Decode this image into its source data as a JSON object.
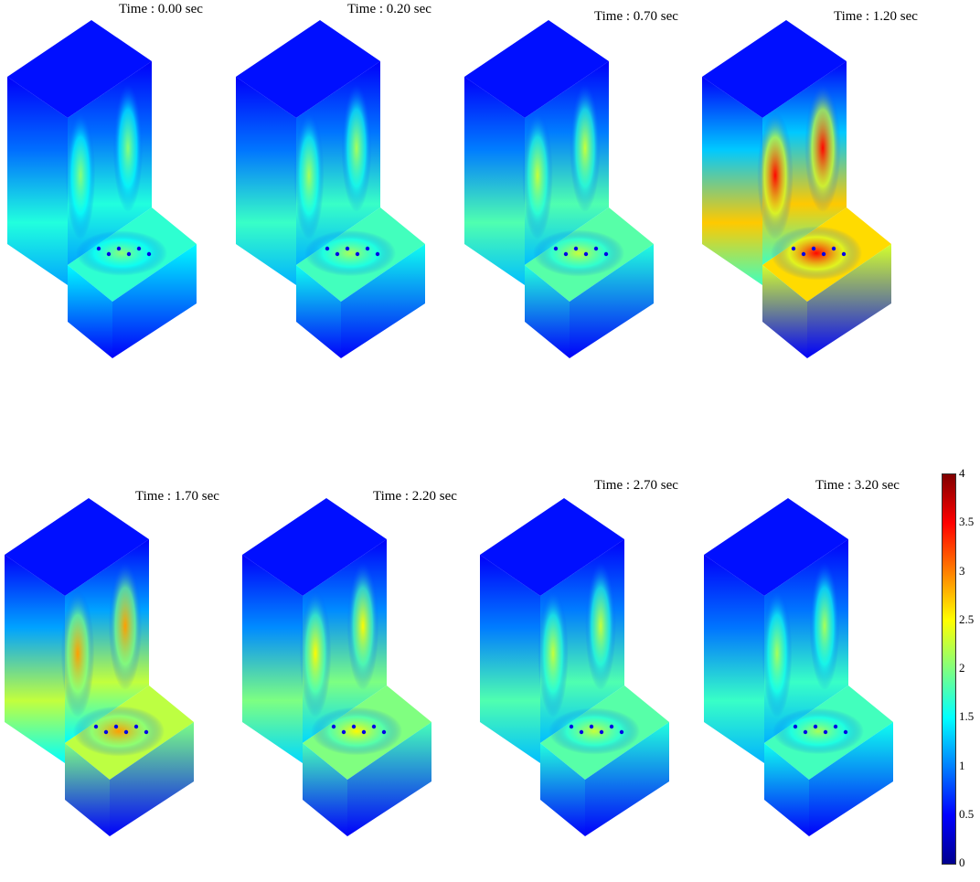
{
  "panels": [
    {
      "label": "Time : 0.00 sec",
      "intensity": 0.35
    },
    {
      "label": "Time : 0.20 sec",
      "intensity": 0.4
    },
    {
      "label": "Time : 0.70 sec",
      "intensity": 0.45
    },
    {
      "label": "Time : 1.20 sec",
      "intensity": 0.95
    },
    {
      "label": "Time : 1.70 sec",
      "intensity": 0.7
    },
    {
      "label": "Time : 2.20 sec",
      "intensity": 0.55
    },
    {
      "label": "Time : 2.70 sec",
      "intensity": 0.45
    },
    {
      "label": "Time : 3.20 sec",
      "intensity": 0.4
    }
  ],
  "colorbar": {
    "ticks": [
      "4",
      "3.5",
      "3",
      "2.5",
      "2",
      "1.5",
      "1",
      "0.5",
      "0"
    ],
    "min": 0,
    "max": 4,
    "colormap": [
      "#00008f",
      "#0000ff",
      "#00ffff",
      "#ffff00",
      "#ff0000",
      "#800000"
    ]
  }
}
